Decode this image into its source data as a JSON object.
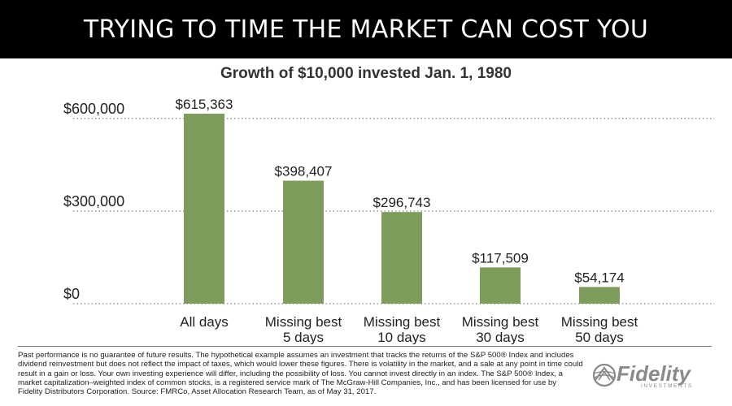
{
  "header": {
    "title": "TRYING TO TIME THE MARKET CAN COST YOU"
  },
  "chart_data": {
    "type": "bar",
    "title": "Growth of $10,000 invested Jan. 1, 1980",
    "xlabel": "",
    "ylabel": "",
    "categories": [
      [
        "All days"
      ],
      [
        "Missing best",
        "5 days"
      ],
      [
        "Missing best",
        "10 days"
      ],
      [
        "Missing best",
        "30 days"
      ],
      [
        "Missing best",
        "50 days"
      ]
    ],
    "values": [
      615363,
      398407,
      296743,
      117509,
      54174
    ],
    "data_labels": [
      "$615,363",
      "$398,407",
      "$296,743",
      "$117,509",
      "$54,174"
    ],
    "y_ticks": [
      0,
      300000,
      600000
    ],
    "y_tick_labels": [
      "$0",
      "$300,000",
      "$600,000"
    ],
    "ylim": [
      0,
      615363
    ],
    "grid": "dotted horizontal at ticks",
    "legend": "none",
    "bar_color": "#7e9c5c",
    "grid_color": "#999999"
  },
  "footer": {
    "disclaimer": "Past performance is no guarantee of future results. The hypothetical example assumes an investment that tracks the returns of the S&P 500® Index and includes dividend reinvestment but does not reflect the impact of taxes, which would lower these figures. There is volatility in the market, and a sale at any point in time could result in a gain or loss. Your own investing experience will differ, including the possibility of loss. You cannot invest directly in an index. The S&P 500® Index, a market capitalization–weighted index of common stocks, is a registered service mark of The McGraw-Hill Companies, Inc., and has been licensed for use by Fidelity Distributors Corporation. Source: FMRCo, Asset Allocation Research Team, as of May 31, 2017.",
    "logo_text": "Fidelity",
    "logo_subtext": "INVESTMENTS",
    "logo_icon": "fidelity-globe-icon"
  }
}
